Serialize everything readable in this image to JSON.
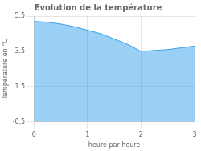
{
  "chart_data": {
    "type": "area",
    "title": "Evolution de la température",
    "x_label": "heure par heure",
    "y_label": "Température en °C",
    "x": [
      0,
      0.25,
      0.5,
      0.75,
      1.0,
      1.25,
      1.5,
      1.75,
      2.0,
      2.25,
      2.5,
      2.75,
      3.0
    ],
    "values": [
      5.2,
      5.15,
      5.05,
      4.9,
      4.7,
      4.5,
      4.2,
      3.9,
      3.5,
      3.55,
      3.6,
      3.7,
      3.8
    ],
    "xlim": [
      0,
      3
    ],
    "ylim": [
      -0.5,
      5.5
    ],
    "xticks": [
      0,
      1,
      2,
      3
    ],
    "yticks": [
      -0.5,
      1.5,
      3.5,
      5.5
    ],
    "grid": true
  }
}
